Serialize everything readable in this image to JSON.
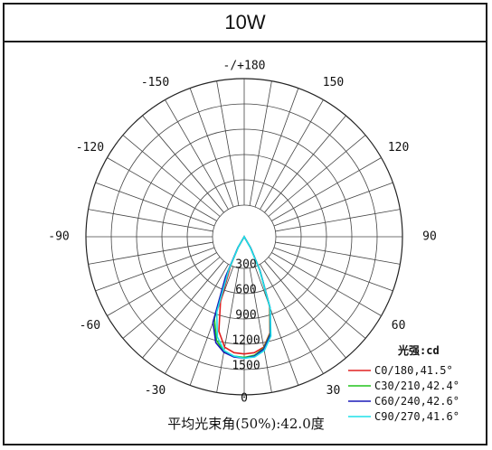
{
  "title": "10W",
  "chart_data": {
    "type": "polar",
    "unit_label": "光强:cd",
    "radial_ticks": [
      300,
      600,
      900,
      1200,
      1500
    ],
    "radial_max": 1500,
    "angle_labels": [
      {
        "text": "0",
        "angle": 0
      },
      {
        "text": "-30",
        "angle": -30
      },
      {
        "text": "30",
        "angle": 30
      },
      {
        "text": "-60",
        "angle": -60
      },
      {
        "text": "60",
        "angle": 60
      },
      {
        "text": "-90",
        "angle": -90
      },
      {
        "text": "90",
        "angle": 90
      },
      {
        "text": "-120",
        "angle": -120
      },
      {
        "text": "120",
        "angle": 120
      },
      {
        "text": "-150",
        "angle": -150
      },
      {
        "text": "150",
        "angle": 150
      },
      {
        "text": "-/+180",
        "angle": 180
      }
    ],
    "series": [
      {
        "name": "C0/180,41.5°",
        "color": "#e02020",
        "angles": [
          -40,
          -30,
          -25,
          -20,
          -15,
          -10,
          -5,
          0,
          5,
          10,
          15,
          20,
          25,
          30,
          40
        ],
        "values": [
          0,
          140,
          380,
          820,
          1160,
          1330,
          1380,
          1390,
          1380,
          1330,
          1180,
          880,
          440,
          150,
          0
        ]
      },
      {
        "name": "C30/210,42.4°",
        "color": "#22c41c",
        "angles": [
          -40,
          -30,
          -25,
          -20,
          -15,
          -10,
          -5,
          0,
          5,
          10,
          15,
          20,
          25,
          30,
          40
        ],
        "values": [
          0,
          140,
          470,
          1030,
          1270,
          1380,
          1420,
          1430,
          1410,
          1340,
          1190,
          890,
          430,
          150,
          0
        ]
      },
      {
        "name": "C60/240,42.6°",
        "color": "#1a1ab8",
        "angles": [
          -40,
          -30,
          -25,
          -20,
          -15,
          -10,
          -5,
          0,
          5,
          10,
          15,
          20,
          25,
          30,
          40
        ],
        "values": [
          0,
          150,
          520,
          1080,
          1300,
          1390,
          1430,
          1440,
          1420,
          1350,
          1200,
          900,
          440,
          150,
          0
        ]
      },
      {
        "name": "C90/270,41.6°",
        "color": "#1ee0e8",
        "angles": [
          -40,
          -30,
          -25,
          -20,
          -15,
          -10,
          -5,
          0,
          5,
          10,
          15,
          20,
          25,
          30,
          40
        ],
        "values": [
          0,
          130,
          430,
          950,
          1230,
          1370,
          1420,
          1440,
          1430,
          1370,
          1220,
          900,
          430,
          140,
          0
        ]
      }
    ],
    "footer_text": "平均光束角(50%):42.0度"
  }
}
